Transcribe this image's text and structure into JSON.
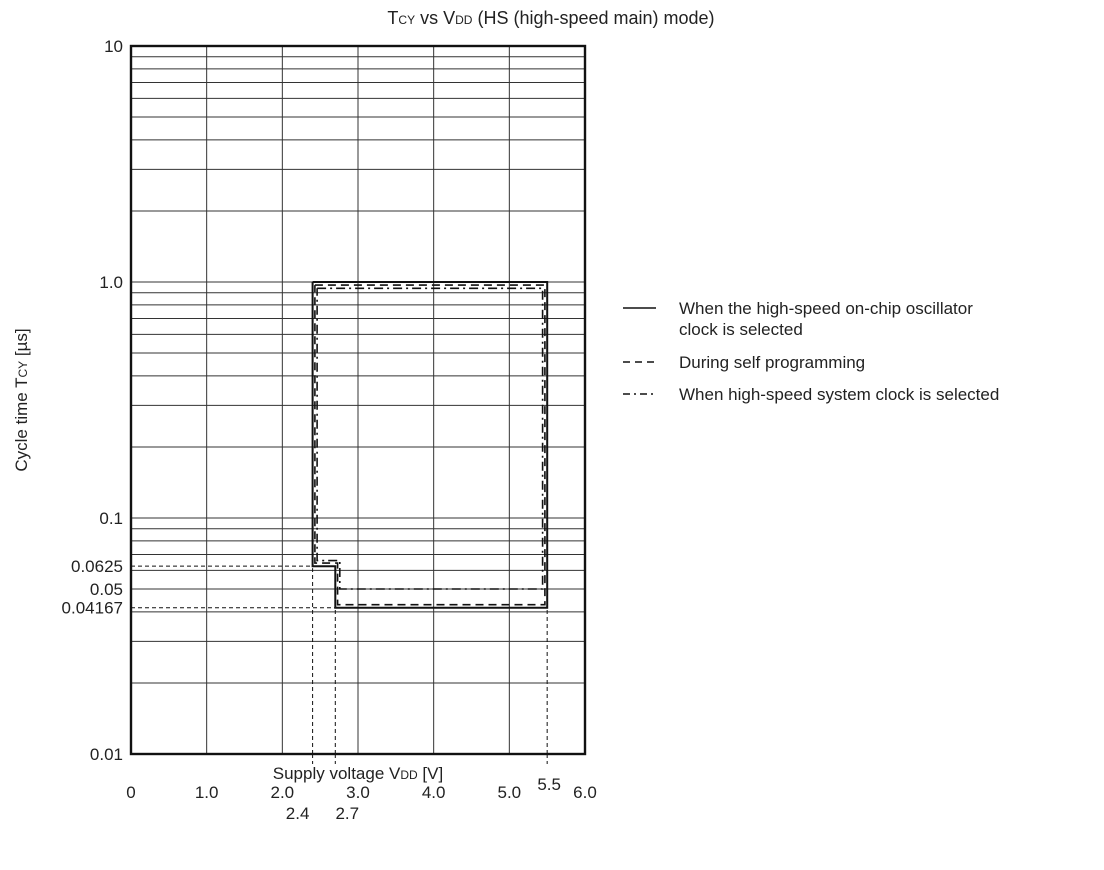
{
  "chart_data": {
    "type": "line",
    "title": "TCY vs VDD (HS (high-speed main) mode)",
    "title_parts": {
      "t": "T",
      "t_sub": "CY",
      "vs": " vs V",
      "v_sub": "DD",
      "rest": " (HS (high-speed main) mode)"
    },
    "xlabel": "Supply voltage VDD [V]",
    "xlabel_parts": {
      "main": "Supply voltage V",
      "sub": "DD",
      "unit": " [V]"
    },
    "ylabel": "Cycle time TCY [µs]",
    "ylabel_parts": {
      "main": "Cycle time T",
      "sub": "CY",
      "unit": " [µs]"
    },
    "x_scale": "linear",
    "y_scale": "log",
    "xlim": [
      0,
      6.0
    ],
    "ylim": [
      0.01,
      10
    ],
    "grid": true,
    "x_ticks": [
      {
        "value": 0,
        "label": "0"
      },
      {
        "value": 1.0,
        "label": "1.0"
      },
      {
        "value": 2.0,
        "label": "2.0"
      },
      {
        "value": 3.0,
        "label": "3.0"
      },
      {
        "value": 4.0,
        "label": "4.0"
      },
      {
        "value": 5.0,
        "label": "5.0"
      },
      {
        "value": 6.0,
        "label": "6.0"
      }
    ],
    "x_extra_ticks": [
      {
        "value": 2.4,
        "label": "2.4"
      },
      {
        "value": 2.7,
        "label": "2.7"
      },
      {
        "value": 5.5,
        "label": "5.5"
      }
    ],
    "y_ticks": [
      {
        "value": 10,
        "label": "10"
      },
      {
        "value": 1.0,
        "label": "1.0"
      },
      {
        "value": 0.1,
        "label": "0.1"
      },
      {
        "value": 0.01,
        "label": "0.01"
      }
    ],
    "y_extra_ticks": [
      {
        "value": 0.0625,
        "label": "0.0625"
      },
      {
        "value": 0.05,
        "label": "0.05"
      },
      {
        "value": 0.04167,
        "label": "0.04167"
      }
    ],
    "guides": [
      {
        "axis": "y",
        "value": 0.0625,
        "from_x": 0,
        "to_x": 2.4
      },
      {
        "axis": "y",
        "value": 0.04167,
        "from_x": 0,
        "to_x": 2.7
      },
      {
        "axis": "x",
        "value": 2.4,
        "from_y": 0.01,
        "to_y": 0.0625
      },
      {
        "axis": "x",
        "value": 2.7,
        "from_y": 0.01,
        "to_y": 0.04167
      },
      {
        "axis": "x",
        "value": 5.5,
        "from_y": 0.01,
        "to_y": 0.04167
      }
    ],
    "legend_position": "right",
    "series": [
      {
        "name": "When the high-speed on-chip oscillator clock is selected",
        "legend_lines": [
          "When the high-speed on-chip oscillator",
          "clock is selected"
        ],
        "style": "solid",
        "points": [
          [
            2.4,
            1.0
          ],
          [
            5.5,
            1.0
          ],
          [
            5.5,
            0.04167
          ],
          [
            2.7,
            0.04167
          ],
          [
            2.7,
            0.0625
          ],
          [
            2.4,
            0.0625
          ],
          [
            2.4,
            1.0
          ]
        ]
      },
      {
        "name": "During self programming",
        "legend_lines": [
          "During self programming"
        ],
        "style": "dashed",
        "points": [
          [
            2.43,
            0.97
          ],
          [
            5.47,
            0.97
          ],
          [
            5.47,
            0.0429
          ],
          [
            2.73,
            0.0429
          ],
          [
            2.73,
            0.0644
          ],
          [
            2.43,
            0.0644
          ],
          [
            2.43,
            0.97
          ]
        ]
      },
      {
        "name": "When high-speed system clock is selected",
        "legend_lines": [
          "When high-speed system clock is selected"
        ],
        "style": "dashdot",
        "points": [
          [
            2.46,
            0.94
          ],
          [
            5.44,
            0.94
          ],
          [
            5.44,
            0.05
          ],
          [
            2.76,
            0.05
          ],
          [
            2.76,
            0.066
          ],
          [
            2.46,
            0.066
          ],
          [
            2.46,
            0.94
          ]
        ]
      }
    ]
  }
}
